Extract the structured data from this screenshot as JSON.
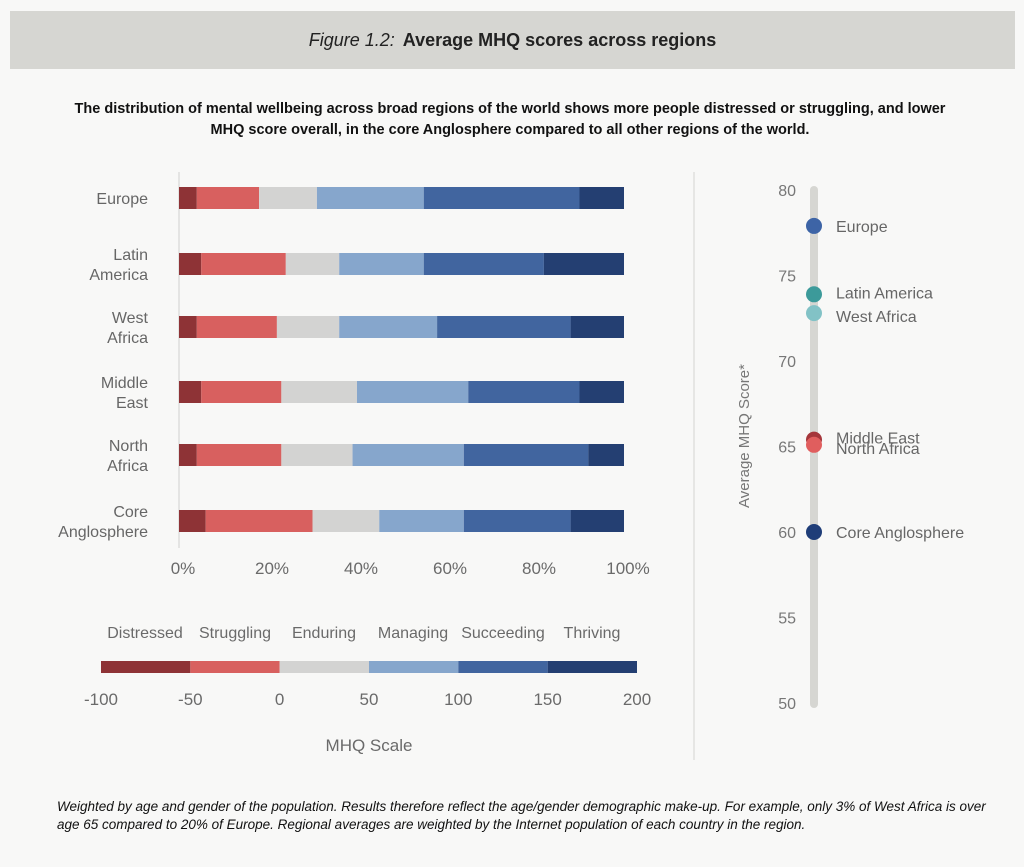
{
  "header": {
    "figure_label": "Figure 1.2:",
    "title": "Average MHQ scores across regions"
  },
  "subtitle": "The distribution of mental wellbeing across broad regions of the world shows more people distressed or struggling, and lower MHQ score overall, in the core Anglosphere compared to all other regions of the world.",
  "note": "Weighted by age and gender of the population. Results therefore reflect the age/gender demographic make-up. For example, only 3% of West Africa is over age 65 compared to 20% of Europe. Regional averages are weighted by the Internet population of each country in the region.",
  "chart_data": [
    {
      "type": "bar",
      "orientation": "horizontal",
      "stacked": true,
      "categories": [
        [
          "Europe"
        ],
        [
          "Latin",
          "America"
        ],
        [
          "West",
          "Africa"
        ],
        [
          "Middle",
          "East"
        ],
        [
          "North",
          "Africa"
        ],
        [
          "Core",
          "Anglosphere"
        ]
      ],
      "series": [
        {
          "name": "Distressed",
          "color": "#8e3336",
          "values": [
            4,
            5,
            4,
            5,
            4,
            6
          ]
        },
        {
          "name": "Struggling",
          "color": "#d8605f",
          "values": [
            14,
            19,
            18,
            18,
            19,
            24
          ]
        },
        {
          "name": "Enduring",
          "color": "#d3d3d2",
          "values": [
            13,
            12,
            14,
            17,
            16,
            15
          ]
        },
        {
          "name": "Managing",
          "color": "#86a6cc",
          "values": [
            24,
            19,
            22,
            25,
            25,
            19
          ]
        },
        {
          "name": "Succeeding",
          "color": "#41659f",
          "values": [
            35,
            27,
            30,
            25,
            28,
            24
          ]
        },
        {
          "name": "Thriving",
          "color": "#243f72",
          "values": [
            10,
            18,
            12,
            10,
            8,
            12
          ]
        }
      ],
      "xticks": [
        "0%",
        "20%",
        "40%",
        "60%",
        "80%",
        "100%"
      ],
      "xlim": [
        0,
        100
      ]
    },
    {
      "type": "bar",
      "title": "MHQ Scale",
      "categories": [
        "Distressed",
        "Struggling",
        "Enduring",
        "Managing",
        "Succeeding",
        "Thriving"
      ],
      "ranges": [
        [
          -100,
          -50
        ],
        [
          -50,
          0
        ],
        [
          0,
          50
        ],
        [
          50,
          100
        ],
        [
          100,
          150
        ],
        [
          150,
          200
        ]
      ],
      "colors": [
        "#8e3336",
        "#d8605f",
        "#d3d3d2",
        "#86a6cc",
        "#41659f",
        "#243f72"
      ],
      "ticks": [
        "-100",
        "-50",
        "0",
        "50",
        "100",
        "150",
        "200"
      ],
      "xlim": [
        -100,
        200
      ]
    },
    {
      "type": "scatter",
      "ylabel": "Average MHQ Score*",
      "ylim": [
        50,
        80
      ],
      "yticks": [
        "80",
        "75",
        "70",
        "65",
        "60",
        "55",
        "50"
      ],
      "points": [
        {
          "label": "Europe",
          "value": 77.9,
          "color": "#3d64a6"
        },
        {
          "label": "Latin America",
          "value": 73.9,
          "color": "#3c9a9a"
        },
        {
          "label": "West Africa",
          "value": 72.8,
          "color": "#82c2c6"
        },
        {
          "label": "Middle East",
          "value": 65.4,
          "color": "#a5363b"
        },
        {
          "label": "North Africa",
          "value": 65.1,
          "color": "#e05e5e"
        },
        {
          "label": "Core Anglosphere",
          "value": 60.0,
          "color": "#1f3d78"
        }
      ]
    }
  ]
}
